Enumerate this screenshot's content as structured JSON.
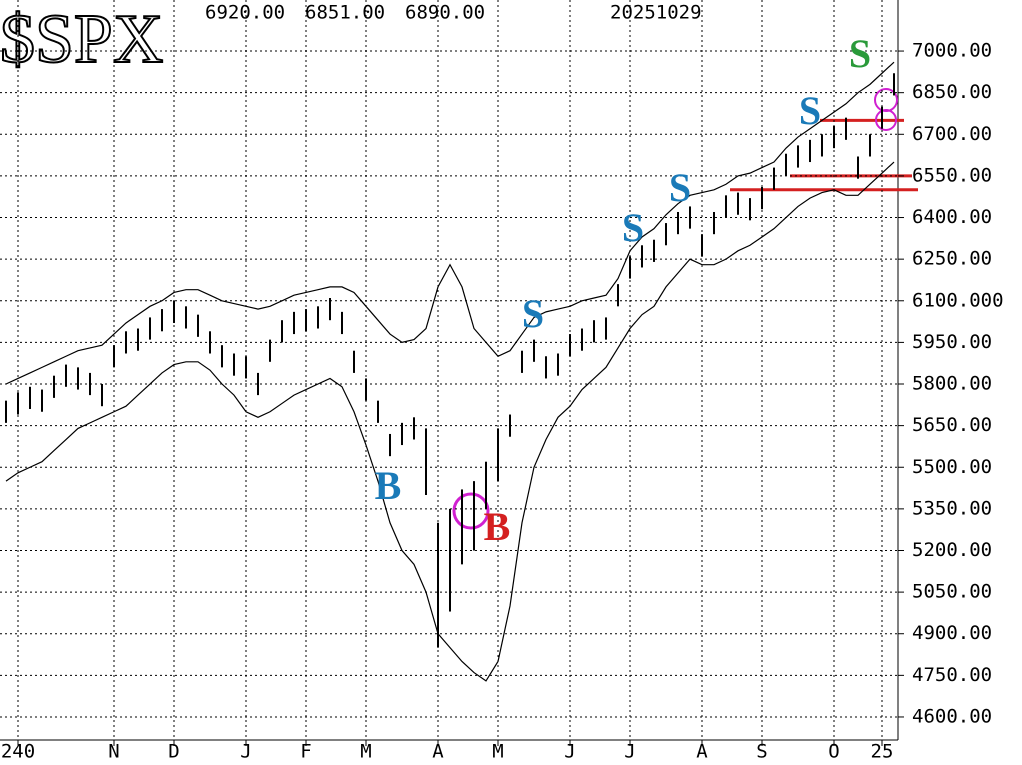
{
  "chart_data": {
    "type": "hl",
    "title": "$SPX",
    "header_values": [
      "6920.00",
      "6851.00",
      "6890.00"
    ],
    "date": "20251029",
    "categories": [
      null,
      "240",
      null,
      null,
      null,
      null,
      null,
      null,
      null,
      "N",
      null,
      null,
      null,
      null,
      "D",
      null,
      null,
      null,
      null,
      null,
      "J",
      null,
      null,
      null,
      null,
      "F",
      null,
      null,
      null,
      null,
      "M",
      null,
      null,
      null,
      null,
      null,
      "A",
      null,
      null,
      null,
      null,
      "M",
      null,
      null,
      null,
      null,
      null,
      "J",
      null,
      null,
      null,
      null,
      "J",
      null,
      null,
      null,
      null,
      null,
      "A",
      null,
      null,
      null,
      null,
      "S",
      null,
      null,
      null,
      null,
      null,
      "O",
      null,
      null,
      null,
      "25",
      null
    ],
    "high": [
      5740,
      5770,
      5790,
      5780,
      5830,
      5870,
      5860,
      5840,
      5800,
      5940,
      5990,
      6000,
      6040,
      6070,
      6100,
      6080,
      6050,
      5990,
      5940,
      5910,
      5900,
      5840,
      5960,
      6030,
      6060,
      6070,
      6080,
      6110,
      6060,
      5920,
      5820,
      5740,
      5620,
      5660,
      5680,
      5640,
      5300,
      5350,
      5420,
      5450,
      5520,
      5640,
      5690,
      5920,
      5960,
      5900,
      5910,
      5980,
      6000,
      6030,
      6040,
      6160,
      6260,
      6300,
      6320,
      6380,
      6420,
      6440,
      6340,
      6420,
      6480,
      6490,
      6470,
      6510,
      6580,
      6630,
      6660,
      6680,
      6700,
      6730,
      6760,
      6620,
      6700,
      6800,
      6920
    ],
    "low": [
      5660,
      5690,
      5710,
      5700,
      5750,
      5790,
      5780,
      5760,
      5720,
      5860,
      5910,
      5920,
      5960,
      5990,
      6020,
      6000,
      5970,
      5910,
      5860,
      5830,
      5820,
      5760,
      5880,
      5950,
      5980,
      5990,
      6000,
      6030,
      5980,
      5840,
      5740,
      5660,
      5540,
      5580,
      5600,
      5400,
      4850,
      4980,
      5150,
      5200,
      5350,
      5450,
      5610,
      5840,
      5880,
      5820,
      5830,
      5900,
      5920,
      5950,
      5960,
      6080,
      6180,
      6220,
      6240,
      6300,
      6340,
      6360,
      6260,
      6340,
      6400,
      6410,
      6390,
      6430,
      6500,
      6550,
      6580,
      6600,
      6620,
      6650,
      6680,
      6540,
      6620,
      6720,
      6840
    ],
    "color": "#000000",
    "bands": [
      {
        "color": "#000000",
        "values": [
          5800,
          5820,
          5840,
          5860,
          5880,
          5900,
          5920,
          5930,
          5940,
          5980,
          6020,
          6050,
          6080,
          6100,
          6130,
          6140,
          6140,
          6120,
          6100,
          6090,
          6080,
          6070,
          6080,
          6100,
          6120,
          6130,
          6140,
          6150,
          6150,
          6130,
          6080,
          6030,
          5980,
          5950,
          5960,
          6000,
          6150,
          6230,
          6150,
          6000,
          5950,
          5900,
          5920,
          5980,
          6040,
          6060,
          6070,
          6080,
          6100,
          6110,
          6120,
          6180,
          6280,
          6330,
          6360,
          6410,
          6450,
          6480,
          6490,
          6500,
          6520,
          6550,
          6560,
          6580,
          6600,
          6650,
          6690,
          6720,
          6750,
          6780,
          6810,
          6850,
          6880,
          6920,
          6960
        ]
      },
      {
        "color": "#000000",
        "values": [
          5450,
          5480,
          5500,
          5520,
          5560,
          5600,
          5640,
          5660,
          5680,
          5700,
          5720,
          5760,
          5800,
          5840,
          5870,
          5880,
          5880,
          5850,
          5800,
          5760,
          5700,
          5680,
          5700,
          5730,
          5760,
          5780,
          5800,
          5820,
          5790,
          5700,
          5580,
          5450,
          5300,
          5200,
          5150,
          5050,
          4900,
          4850,
          4800,
          4760,
          4730,
          4800,
          5000,
          5300,
          5500,
          5600,
          5680,
          5720,
          5780,
          5820,
          5860,
          5930,
          6000,
          6050,
          6080,
          6150,
          6200,
          6250,
          6230,
          6230,
          6250,
          6280,
          6300,
          6330,
          6360,
          6400,
          6440,
          6470,
          6490,
          6500,
          6480,
          6480,
          6520,
          6560,
          6600
        ]
      }
    ],
    "ylim": [
      4517,
      7184
    ],
    "yticks": [
      {
        "value": 4600,
        "label": "4600.00"
      },
      {
        "value": 4750,
        "label": "4750.00"
      },
      {
        "value": 4900,
        "label": "4900.00"
      },
      {
        "value": 5050,
        "label": "5050.00"
      },
      {
        "value": 5200,
        "label": "5200.00"
      },
      {
        "value": 5350,
        "label": "5350.00"
      },
      {
        "value": 5500,
        "label": "5500.00"
      },
      {
        "value": 5650,
        "label": "5650.00"
      },
      {
        "value": 5800,
        "label": "5800.00"
      },
      {
        "value": 5950,
        "label": "5950.00"
      },
      {
        "value": 6100,
        "label": "6100.000"
      },
      {
        "value": 6250,
        "label": "6250.00"
      },
      {
        "value": 6400,
        "label": "6400.00"
      },
      {
        "value": 6550,
        "label": "6550.00"
      },
      {
        "value": 6700,
        "label": "6700.00"
      },
      {
        "value": 6850,
        "label": "6850.00"
      },
      {
        "value": 7000,
        "label": "7000.00"
      }
    ],
    "grid": true,
    "hlines": [
      {
        "value": 6750,
        "color": "#d42020"
      },
      {
        "value": 6550,
        "color": "#d42020"
      },
      {
        "value": 6500,
        "color": "#d42020"
      }
    ],
    "annotations": [
      {
        "text": "B",
        "color": "#1a7ab8"
      },
      {
        "text": "B",
        "color": "#d42020"
      },
      {
        "text": "S",
        "color": "#1a7ab8"
      },
      {
        "text": "S",
        "color": "#1a7ab8"
      },
      {
        "text": "S",
        "color": "#1a7ab8"
      },
      {
        "text": "S",
        "color": "#1a7ab8"
      },
      {
        "text": "S",
        "color": "#2a9a3a"
      }
    ]
  }
}
